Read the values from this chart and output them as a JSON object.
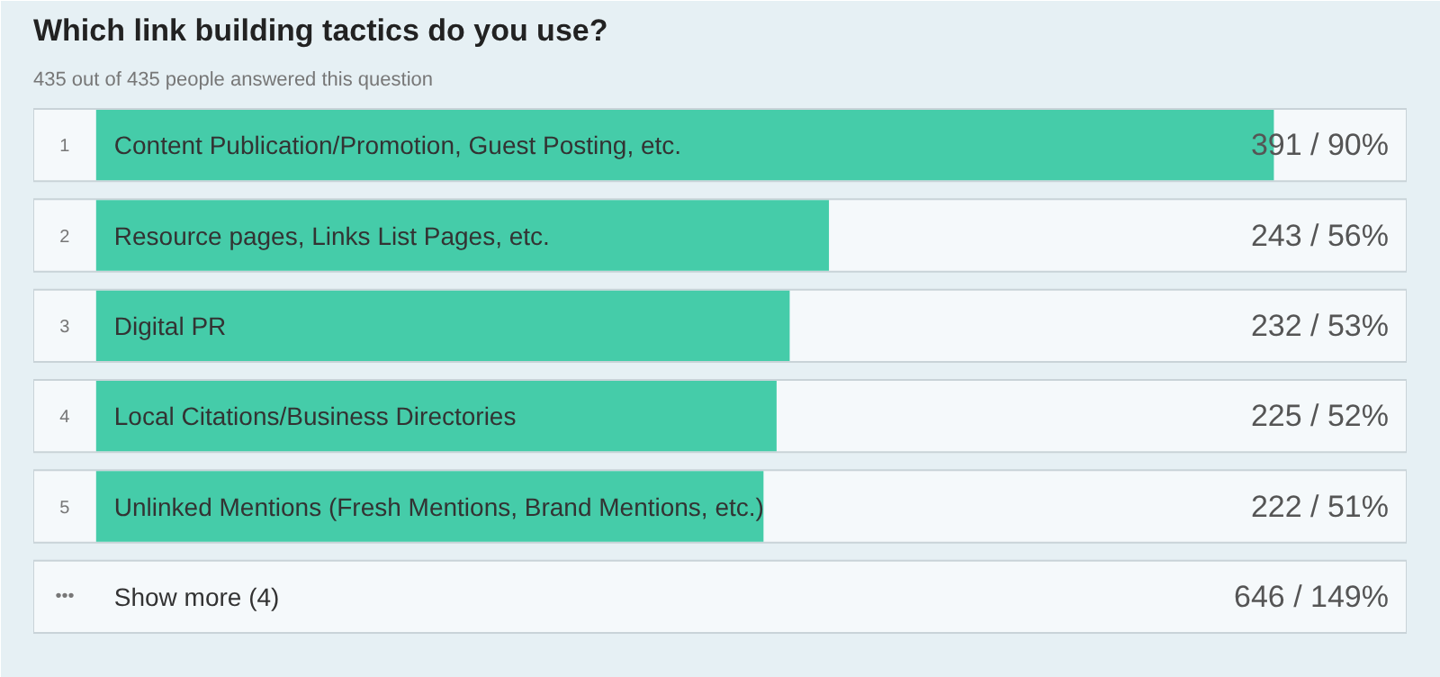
{
  "chart_data": {
    "type": "bar",
    "orientation": "horizontal",
    "title": "Which link building tactics do you use?",
    "subtitle": "435 out of 435 people answered this question",
    "categories": [
      "Content Publication/Promotion, Guest Posting, etc.",
      "Resource pages, Links List Pages, etc.",
      "Digital PR",
      "Local Citations/Business Directories",
      "Unlinked Mentions (Fresh Mentions, Brand Mentions, etc.)",
      "Show more (4)"
    ],
    "values": [
      90,
      56,
      53,
      52,
      51,
      null
    ],
    "value_labels": [
      "391 / 90%",
      "243 / 56%",
      "232 / 53%",
      "225 / 52%",
      "222 / 51%",
      "646 / 149%"
    ],
    "color": "#45cca9",
    "xlim": [
      0,
      100
    ],
    "tick_labels": false,
    "grid": false,
    "annotations": [
      "1",
      "2",
      "3",
      "4",
      "5",
      "•••"
    ]
  }
}
